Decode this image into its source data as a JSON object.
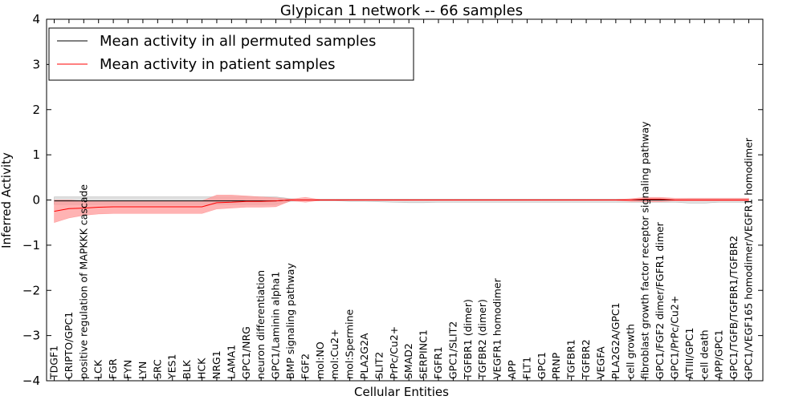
{
  "chart_data": {
    "type": "line",
    "title": "Glypican 1 network -- 66 samples",
    "xlabel": "Cellular Entities",
    "ylabel": "Inferred Activity",
    "ylim": [
      -4,
      4
    ],
    "yticks": [
      -4,
      -3,
      -2,
      -1,
      0,
      1,
      2,
      3,
      4
    ],
    "legend_position": "top-left",
    "categories": [
      "TDGF1",
      "CRIPTO/GPC1",
      "positive regulation of MAPKKK cascade",
      "LCK",
      "FGR",
      "FYN",
      "LYN",
      "SRC",
      "YES1",
      "BLK",
      "HCK",
      "NRG1",
      "LAMA1",
      "GPC1/NRG",
      "neuron differentiation",
      "GPC1/Laminin alpha1",
      "BMP signaling pathway",
      "FGF2",
      "mol:NO",
      "mol:Cu2+",
      "mol:Spermine",
      "PLA2G2A",
      "SLIT2",
      "PrPc/Cu2+",
      "SMAD2",
      "SERPINC1",
      "FGFR1",
      "GPC1/SLIT2",
      "TGFBR1 (dimer)",
      "TGFBR2 (dimer)",
      "VEGFR1 homodimer",
      "APP",
      "FLT1",
      "GPC1",
      "PRNP",
      "TGFBR1",
      "TGFBR2",
      "VEGFA",
      "PLA2G2A/GPC1",
      "cell growth",
      "fibroblast growth factor receptor signaling pathway",
      "GPC1/FGF2 dimer/FGFR1 dimer",
      "GPC1/PrPc/Cu2+",
      "ATIII/GPC1",
      "cell death",
      "APP/GPC1",
      "GPC1/TGFB/TGFBR1/TGFBR2",
      "GPC1/VEGF165 homodimer/VEGFR1 homodimer"
    ],
    "series": [
      {
        "name": "Mean activity in all permuted samples",
        "color": "#000000",
        "band_color": "#bfbfbf",
        "values": [
          -0.02,
          -0.02,
          -0.02,
          -0.02,
          -0.02,
          -0.02,
          -0.02,
          -0.02,
          -0.02,
          -0.02,
          -0.02,
          -0.02,
          -0.02,
          -0.02,
          -0.02,
          -0.02,
          0.0,
          0.0,
          0.0,
          0.0,
          0.0,
          0.0,
          0.0,
          0.0,
          0.0,
          0.0,
          0.0,
          0.0,
          0.0,
          0.0,
          0.0,
          0.0,
          0.0,
          0.0,
          0.0,
          0.0,
          0.0,
          0.0,
          0.0,
          0.0,
          0.0,
          0.0,
          0.0,
          0.0,
          0.0,
          0.0,
          0.0,
          0.0
        ],
        "lower": [
          -0.1,
          -0.1,
          -0.1,
          -0.1,
          -0.1,
          -0.1,
          -0.1,
          -0.1,
          -0.1,
          -0.1,
          -0.1,
          -0.1,
          -0.1,
          -0.1,
          -0.1,
          -0.1,
          -0.03,
          -0.02,
          -0.02,
          -0.02,
          -0.03,
          -0.03,
          -0.04,
          -0.05,
          -0.06,
          -0.06,
          -0.05,
          -0.05,
          -0.05,
          -0.05,
          -0.05,
          -0.05,
          -0.05,
          -0.05,
          -0.05,
          -0.05,
          -0.05,
          -0.05,
          -0.05,
          -0.05,
          -0.05,
          -0.05,
          -0.05,
          -0.07,
          -0.07,
          -0.05,
          -0.05,
          -0.05
        ],
        "upper": [
          0.07,
          0.07,
          0.07,
          0.07,
          0.07,
          0.07,
          0.07,
          0.07,
          0.07,
          0.07,
          0.07,
          0.07,
          0.07,
          0.07,
          0.07,
          0.07,
          0.03,
          0.02,
          0.02,
          0.02,
          0.02,
          0.02,
          0.02,
          0.02,
          0.02,
          0.02,
          0.02,
          0.02,
          0.02,
          0.02,
          0.02,
          0.02,
          0.02,
          0.02,
          0.02,
          0.02,
          0.02,
          0.02,
          0.02,
          0.02,
          0.02,
          0.02,
          0.02,
          0.03,
          0.03,
          0.03,
          0.03,
          0.03
        ]
      },
      {
        "name": "Mean activity in patient samples",
        "color": "#ff0000",
        "band_color": "#ff9a9a",
        "values": [
          -0.25,
          -0.19,
          -0.18,
          -0.16,
          -0.15,
          -0.15,
          -0.15,
          -0.15,
          -0.15,
          -0.15,
          -0.15,
          -0.06,
          -0.05,
          -0.03,
          -0.03,
          -0.02,
          0.0,
          0.0,
          0.0,
          0.0,
          0.0,
          0.0,
          0.0,
          0.0,
          0.0,
          0.0,
          0.0,
          0.0,
          0.0,
          0.0,
          0.0,
          0.0,
          0.0,
          0.0,
          0.0,
          0.0,
          0.0,
          0.0,
          0.0,
          0.0,
          0.02,
          0.02,
          0.0,
          0.0,
          0.0,
          0.0,
          0.0,
          0.0
        ],
        "lower": [
          -0.5,
          -0.4,
          -0.34,
          -0.31,
          -0.3,
          -0.3,
          -0.3,
          -0.3,
          -0.3,
          -0.3,
          -0.3,
          -0.2,
          -0.18,
          -0.16,
          -0.16,
          -0.15,
          -0.02,
          -0.05,
          -0.01,
          -0.01,
          -0.01,
          -0.01,
          -0.01,
          -0.01,
          -0.01,
          -0.01,
          -0.01,
          -0.01,
          -0.01,
          -0.01,
          -0.01,
          -0.01,
          -0.01,
          -0.01,
          -0.01,
          -0.01,
          -0.01,
          -0.01,
          -0.01,
          -0.03,
          -0.04,
          -0.04,
          -0.02,
          -0.02,
          -0.02,
          -0.02,
          -0.02,
          -0.02
        ],
        "upper": [
          0.0,
          0.0,
          -0.02,
          -0.02,
          -0.02,
          -0.02,
          -0.02,
          -0.02,
          -0.02,
          -0.02,
          -0.02,
          0.11,
          0.11,
          0.09,
          0.07,
          0.05,
          0.02,
          0.06,
          0.01,
          0.01,
          0.01,
          0.01,
          0.01,
          0.01,
          0.01,
          0.01,
          0.01,
          0.01,
          0.01,
          0.01,
          0.01,
          0.01,
          0.01,
          0.01,
          0.01,
          0.01,
          0.01,
          0.01,
          0.01,
          0.03,
          0.06,
          0.06,
          0.04,
          0.04,
          0.04,
          0.04,
          0.04,
          0.04
        ]
      }
    ]
  }
}
